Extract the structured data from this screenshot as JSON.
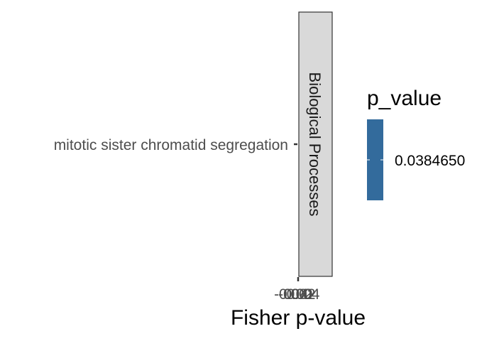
{
  "chart_data": {
    "type": "bar",
    "categories": [
      "mitotic sister chromatid segregation"
    ],
    "values": [
      0.038465
    ],
    "facet_label": "Biological Processes",
    "xlabel": "Fisher p-value",
    "ylabel": "",
    "x_tick_labels": [
      "-0.04",
      "-0.02",
      "0.00",
      "0.02",
      "0.04"
    ],
    "legend": {
      "title": "p_value",
      "label": "0.0384650",
      "position": "right",
      "color": "#336b9c"
    },
    "grid": false
  }
}
